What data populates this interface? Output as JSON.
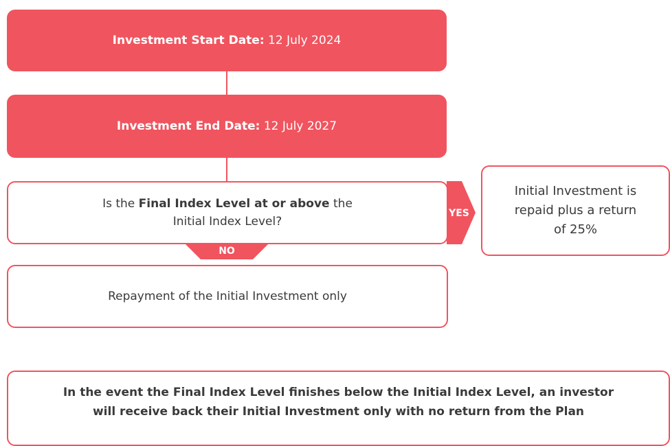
{
  "nodes": [
    {
      "label": "Investment Start Date:",
      "value": "12 July 2024"
    },
    {
      "label": "Investment End Date:",
      "value": "12 July 2027"
    },
    {
      "before": "Is the",
      "bold": "Final Index Level at or above",
      "after": "the",
      "line2": "Initial Index Level?"
    },
    {
      "lines": [
        "Initial Investment is",
        "repaid plus a return",
        "of 25%"
      ]
    },
    {
      "text": "Repayment of the Initial Investment only"
    },
    {
      "lines": [
        "In the event the Final Index Level finishes below the Initial Index Level, an investor",
        "will receive back their Initial Investment only with no return from the Plan"
      ]
    }
  ],
  "edges": {
    "yes": "YES",
    "no": "NO"
  }
}
